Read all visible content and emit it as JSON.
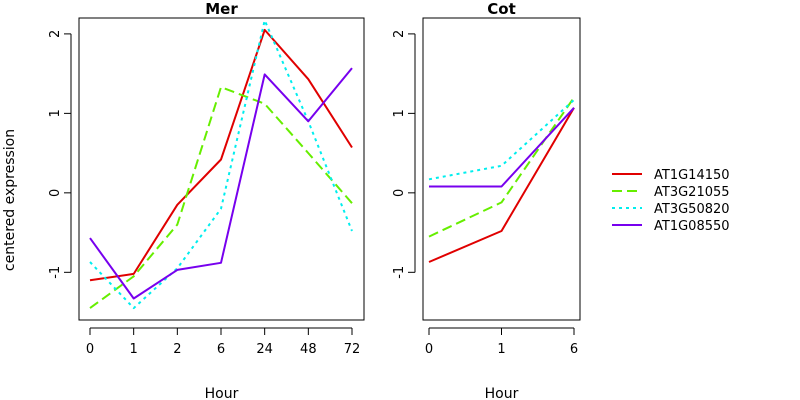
{
  "ylabel": "centered expression",
  "legend": {
    "position": "right",
    "entries": [
      {
        "name": "AT1G14150",
        "color": "#e00000",
        "dash": "solid"
      },
      {
        "name": "AT3G21055",
        "color": "#66ee00",
        "dash": "dashed"
      },
      {
        "name": "AT3G50820",
        "color": "#00eeee",
        "dash": "dotted"
      },
      {
        "name": "AT1G08550",
        "color": "#7700ee",
        "dash": "solid"
      }
    ]
  },
  "chart_data": [
    {
      "type": "line",
      "title": "Mer",
      "xlabel": "Hour",
      "ylabel": "centered expression",
      "categories": [
        "0",
        "1",
        "2",
        "6",
        "24",
        "48",
        "72"
      ],
      "ylim": [
        -1.6,
        2.2
      ],
      "yticks": [
        -1,
        0,
        1,
        2
      ],
      "ytick_labels": [
        "-1",
        "0",
        "1",
        "2"
      ],
      "grid": false,
      "series": [
        {
          "name": "AT1G14150",
          "values": [
            -1.1,
            -1.02,
            -0.15,
            0.42,
            2.05,
            1.43,
            0.57
          ]
        },
        {
          "name": "AT3G21055",
          "values": [
            -1.45,
            -1.05,
            -0.4,
            1.33,
            1.12,
            0.5,
            -0.13
          ]
        },
        {
          "name": "AT3G50820",
          "values": [
            -0.87,
            -1.45,
            -0.95,
            -0.2,
            2.17,
            0.9,
            -0.48
          ]
        },
        {
          "name": "AT1G08550",
          "values": [
            -0.57,
            -1.33,
            -0.97,
            -0.88,
            1.49,
            0.9,
            1.57
          ]
        }
      ]
    },
    {
      "type": "line",
      "title": "Cot",
      "xlabel": "Hour",
      "categories": [
        "0",
        "1",
        "6"
      ],
      "ylim": [
        -1.6,
        2.2
      ],
      "yticks": [
        -1,
        0,
        1,
        2
      ],
      "ytick_labels": [
        "-1",
        "0",
        "1",
        "2"
      ],
      "grid": false,
      "series": [
        {
          "name": "AT1G14150",
          "values": [
            -0.87,
            -0.48,
            1.07
          ]
        },
        {
          "name": "AT3G21055",
          "values": [
            -0.55,
            -0.12,
            1.2
          ]
        },
        {
          "name": "AT3G50820",
          "values": [
            0.17,
            0.34,
            1.17
          ]
        },
        {
          "name": "AT1G08550",
          "values": [
            0.08,
            0.08,
            1.07
          ]
        }
      ]
    }
  ]
}
